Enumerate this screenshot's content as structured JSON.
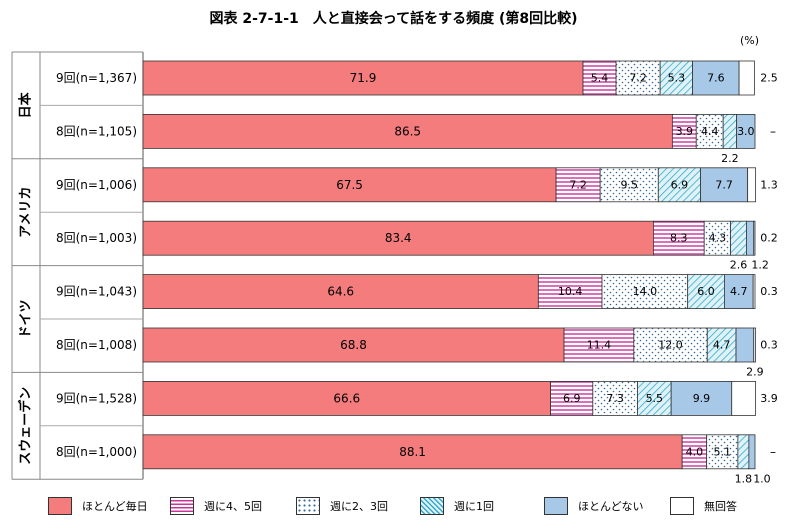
{
  "title": "図表 2-7-1-1　人と直接会って話をする頻度 (第8回比較)",
  "unit": "(%)",
  "legend": [
    "ほとんど毎日",
    "週に4、5回",
    "週に2、3回",
    "週に1回",
    "ほとんどない",
    "無回答"
  ],
  "colors": {
    "daily": "#f47c7c",
    "four_five": "#cc3399",
    "two_three": "#336699",
    "once": "#33aacc",
    "rarely": "#a8c8e8",
    "noanswer": "#ffffff"
  },
  "chart_data": {
    "type": "bar",
    "orientation": "horizontal",
    "stacked": true,
    "xlim": [
      0,
      100
    ],
    "categories": [
      "ほとんど毎日",
      "週に4、5回",
      "週に2、3回",
      "週に1回",
      "ほとんどない",
      "無回答"
    ],
    "groups": [
      "日本",
      "アメリカ",
      "ドイツ",
      "スウェーデン"
    ],
    "rows": [
      {
        "group": "日本",
        "label": "9回(n=1,367)",
        "values": [
          71.9,
          5.4,
          7.2,
          5.3,
          7.6,
          2.5
        ]
      },
      {
        "group": "日本",
        "label": "8回(n=1,105)",
        "values": [
          86.5,
          3.9,
          4.4,
          2.2,
          3.0,
          null
        ]
      },
      {
        "group": "アメリカ",
        "label": "9回(n=1,006)",
        "values": [
          67.5,
          7.2,
          9.5,
          6.9,
          7.7,
          1.3
        ]
      },
      {
        "group": "アメリカ",
        "label": "8回(n=1,003)",
        "values": [
          83.4,
          8.3,
          4.3,
          2.6,
          1.2,
          0.2
        ]
      },
      {
        "group": "ドイツ",
        "label": "9回(n=1,043)",
        "values": [
          64.6,
          10.4,
          14.0,
          6.0,
          4.7,
          0.3
        ]
      },
      {
        "group": "ドイツ",
        "label": "8回(n=1,008)",
        "values": [
          68.8,
          11.4,
          12.0,
          4.7,
          2.9,
          0.3
        ]
      },
      {
        "group": "スウェーデン",
        "label": "9回(n=1,528)",
        "values": [
          66.6,
          6.9,
          7.3,
          5.5,
          9.9,
          3.9
        ]
      },
      {
        "group": "スウェーデン",
        "label": "8回(n=1,000)",
        "values": [
          88.1,
          4.0,
          5.1,
          1.8,
          1.0,
          null
        ]
      }
    ],
    "no_answer_dash": "–"
  }
}
